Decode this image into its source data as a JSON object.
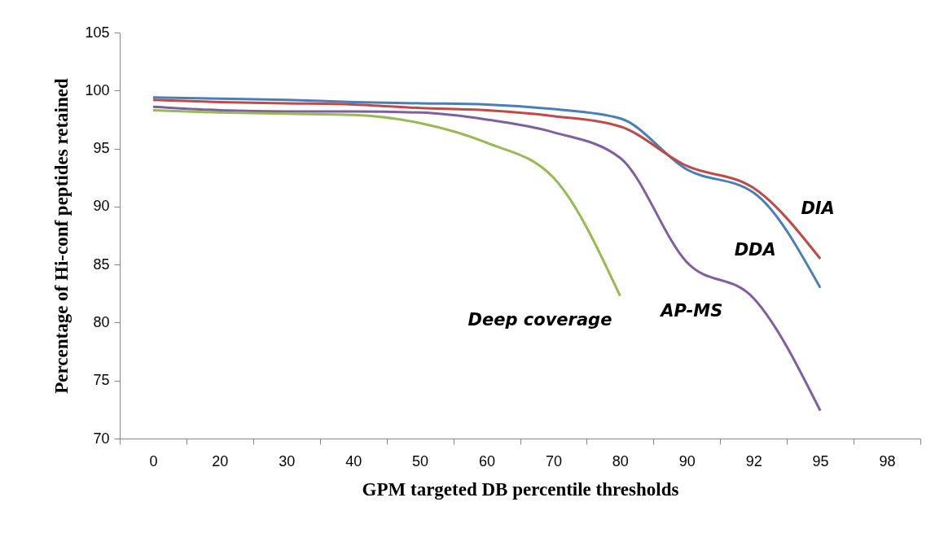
{
  "chart_data": {
    "type": "line",
    "xlabel": "GPM targeted DB percentile thresholds",
    "ylabel": "Percentage of Hi-conf peptides retained",
    "categories": [
      "0",
      "20",
      "30",
      "40",
      "50",
      "60",
      "70",
      "80",
      "90",
      "92",
      "95",
      "98"
    ],
    "ylim": [
      70,
      105
    ],
    "yticks": [
      70,
      75,
      80,
      85,
      90,
      95,
      100,
      105
    ],
    "series": [
      {
        "name": "DDA",
        "color": "#4a7ebb",
        "values": [
          99.4,
          99.3,
          99.2,
          99.0,
          98.9,
          98.8,
          98.4,
          97.6,
          93.2,
          91.2,
          83.0,
          null
        ]
      },
      {
        "name": "DIA",
        "color": "#be4b48",
        "values": [
          99.2,
          99.0,
          98.9,
          98.8,
          98.5,
          98.3,
          97.8,
          96.9,
          93.5,
          91.6,
          85.5,
          null
        ]
      },
      {
        "name": "AP-MS",
        "color": "#7d60a0",
        "values": [
          98.6,
          98.3,
          98.2,
          98.2,
          98.1,
          97.5,
          96.4,
          94.2,
          85.2,
          82.1,
          72.4,
          null
        ]
      },
      {
        "name": "Deep coverage",
        "color": "#98b954",
        "values": [
          98.3,
          98.1,
          98.0,
          97.9,
          97.2,
          95.5,
          92.5,
          82.3,
          null,
          null,
          null,
          null
        ]
      }
    ]
  }
}
